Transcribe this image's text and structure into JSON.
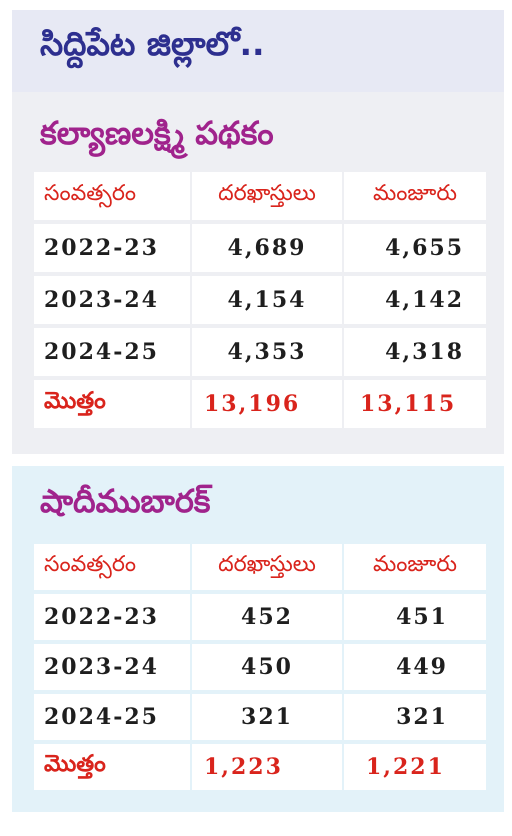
{
  "district": "సిద్దిపేట జిల్లాలో..",
  "headers": {
    "year": "సంవత్సరం",
    "applications": "దరఖాస్తులు",
    "approved": "మంజూరు"
  },
  "total_label": "మొత్తం",
  "kalyana_lakshmi": {
    "title": "కల్యాణలక్ష్మి పథకం",
    "rows": [
      {
        "year": "2022-23",
        "applications": "4,689",
        "approved": "4,655"
      },
      {
        "year": "2023-24",
        "applications": "4,154",
        "approved": "4,142"
      },
      {
        "year": "2024-25",
        "applications": "4,353",
        "approved": "4,318"
      }
    ],
    "total": {
      "applications": "13,196",
      "approved": "13,115"
    }
  },
  "shaadi_mubarak": {
    "title": "షాదీముబారక్",
    "rows": [
      {
        "year": "2022-23",
        "applications": "452",
        "approved": "451"
      },
      {
        "year": "2023-24",
        "applications": "450",
        "approved": "449"
      },
      {
        "year": "2024-25",
        "applications": "321",
        "approved": "321"
      }
    ],
    "total": {
      "applications": "1,223",
      "approved": "1,221"
    }
  }
}
